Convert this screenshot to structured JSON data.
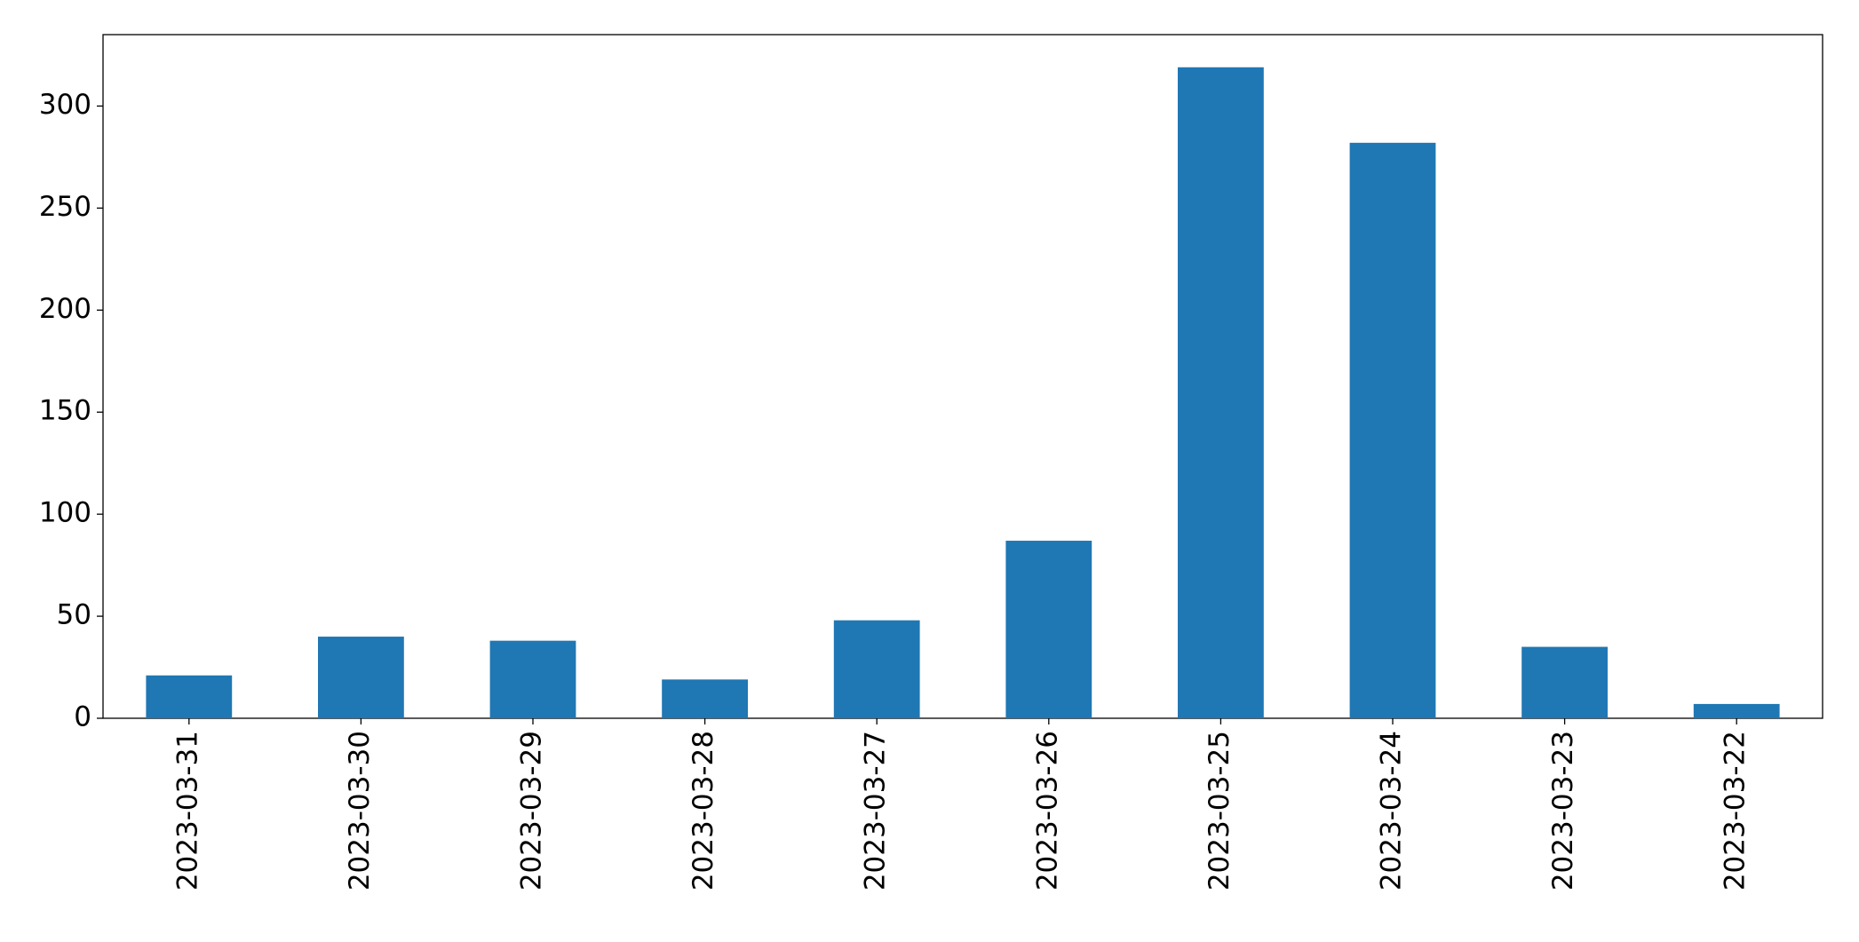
{
  "chart_data": {
    "type": "bar",
    "categories": [
      "2023-03-31",
      "2023-03-30",
      "2023-03-29",
      "2023-03-28",
      "2023-03-27",
      "2023-03-26",
      "2023-03-25",
      "2023-03-24",
      "2023-03-23",
      "2023-03-22"
    ],
    "values": [
      21,
      40,
      38,
      19,
      48,
      87,
      319,
      282,
      35,
      7
    ],
    "color": "#1f77b4",
    "ylim": [
      0,
      335
    ],
    "yticks": [
      0,
      50,
      100,
      150,
      200,
      250,
      300
    ],
    "grid": false
  }
}
